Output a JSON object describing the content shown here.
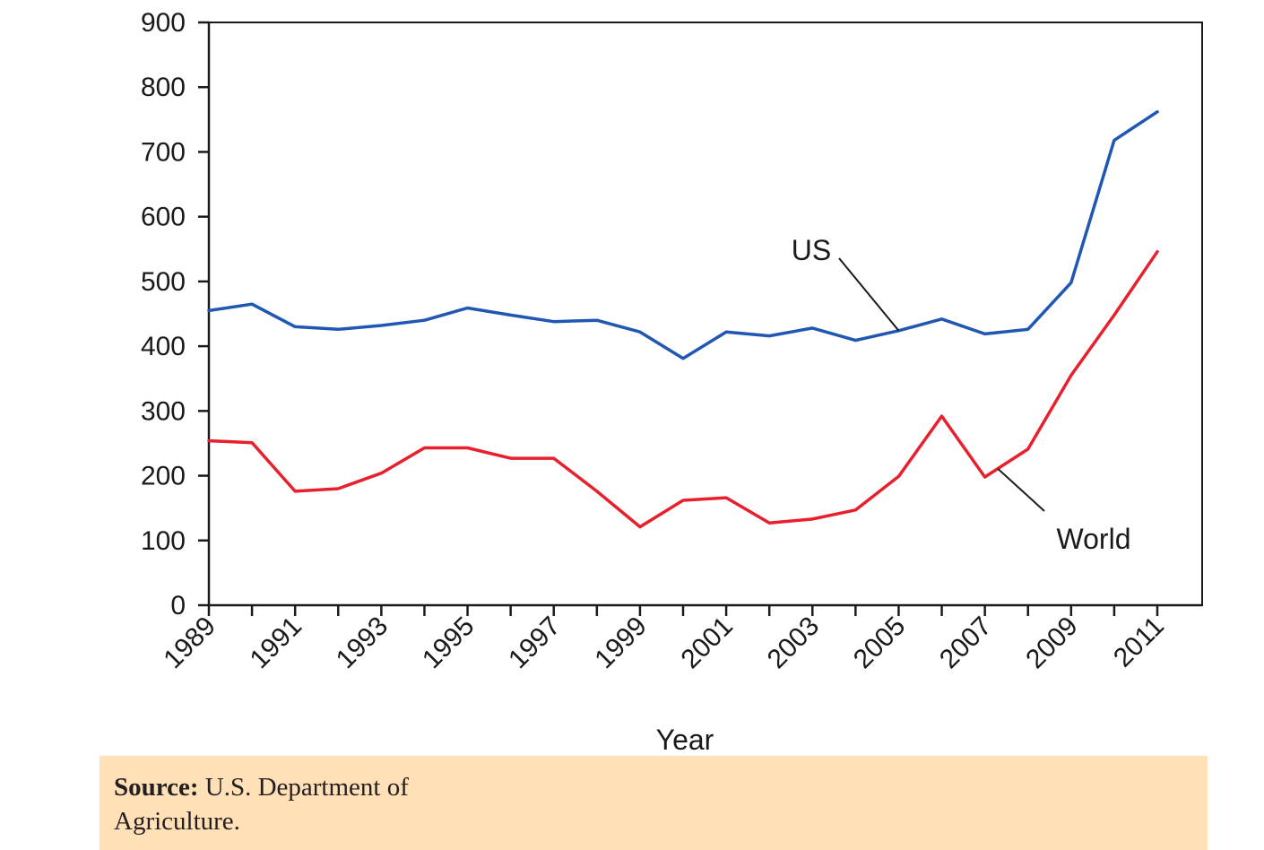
{
  "chart_data": {
    "type": "line",
    "title": "",
    "xlabel": "Year",
    "ylabel": "",
    "xlim": [
      1989,
      2011
    ],
    "ylim": [
      0,
      900
    ],
    "yticks": [
      0,
      100,
      200,
      300,
      400,
      500,
      600,
      700,
      800,
      900
    ],
    "xticks": [
      1989,
      1991,
      1993,
      1995,
      1997,
      1999,
      2001,
      2003,
      2005,
      2007,
      2009,
      2011
    ],
    "grid": false,
    "legend": "none",
    "x": [
      1989,
      1990,
      1991,
      1992,
      1993,
      1994,
      1995,
      1996,
      1997,
      1998,
      1999,
      2000,
      2001,
      2002,
      2003,
      2004,
      2005,
      2006,
      2007,
      2008,
      2009,
      2010,
      2011
    ],
    "series": [
      {
        "name": "US",
        "color": "#1f57b3",
        "values": [
          455,
          465,
          430,
          426,
          432,
          440,
          459,
          448,
          438,
          440,
          422,
          381,
          422,
          416,
          428,
          409,
          424,
          442,
          419,
          426,
          498,
          718,
          762
        ]
      },
      {
        "name": "World",
        "color": "#e8202e",
        "values": [
          254,
          251,
          176,
          180,
          204,
          243,
          243,
          227,
          227,
          176,
          121,
          162,
          166,
          127,
          133,
          147,
          199,
          292,
          198,
          241,
          355,
          448,
          546
        ]
      }
    ],
    "annotations": [
      {
        "text": "US",
        "series": "US",
        "year": 2005
      },
      {
        "text": "World",
        "series": "World",
        "year": 2007.3
      }
    ]
  },
  "source": {
    "lead": "Source:",
    "line1": "U.S. Department of",
    "line2": "Agriculture."
  }
}
